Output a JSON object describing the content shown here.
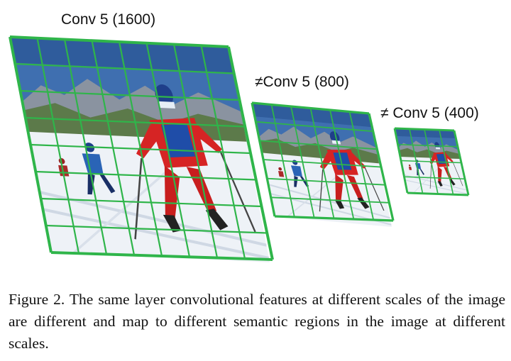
{
  "figure": {
    "panels": [
      {
        "label": "Conv 5 (1600)"
      },
      {
        "label": "≠Conv 5 (800)"
      },
      {
        "label": "≠ Conv 5 (400)"
      }
    ],
    "grid_color": "#2fb54a"
  },
  "caption": {
    "text": "Figure 2. The same layer convolutional features at different scales of the image are different and map to different semantic regions in the image at different scales."
  }
}
